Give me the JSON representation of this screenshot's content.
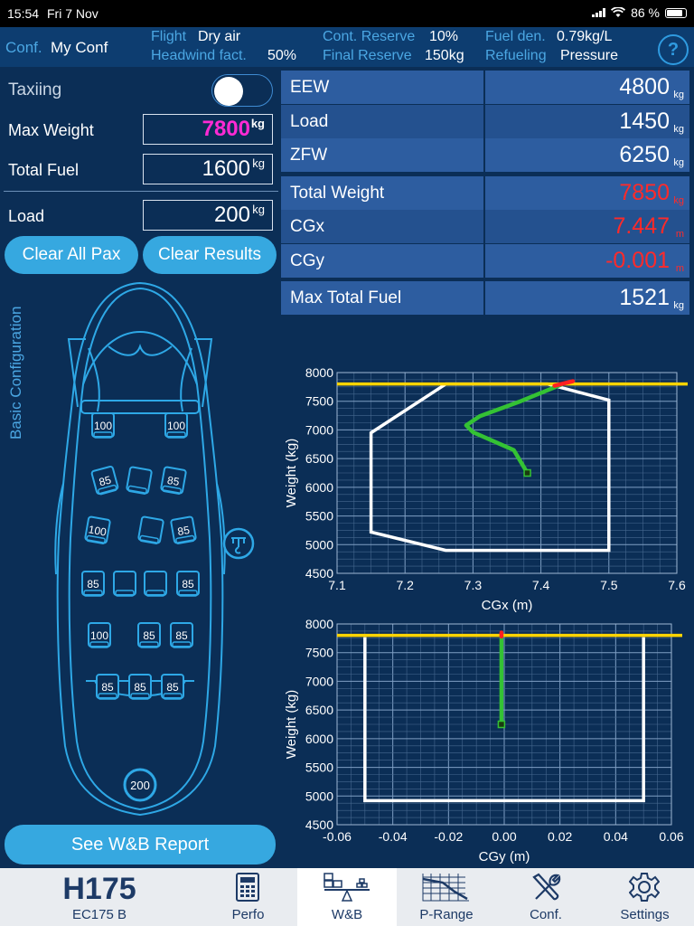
{
  "status": {
    "time": "15:54",
    "date": "Fri 7 Nov",
    "battery": "86 %"
  },
  "info": {
    "conf_label": "Conf.",
    "conf_value": "My Conf",
    "flight_label": "Flight",
    "flight_value": "Dry air",
    "headwind_label": "Headwind fact.",
    "headwind_value": "50%",
    "cont_label": "Cont. Reserve",
    "cont_value": "10%",
    "final_label": "Final Reserve",
    "final_value": "150kg",
    "fueldens_label": "Fuel den.",
    "fueldens_value": "0.79kg/L",
    "refuel_label": "Refueling",
    "refuel_value": "Pressure",
    "help": "?"
  },
  "left": {
    "taxiing": "Taxiing",
    "taxiing_on": false,
    "max_weight_label": "Max Weight",
    "max_weight": "7800",
    "total_fuel_label": "Total Fuel",
    "total_fuel": "1600",
    "load_label": "Load",
    "load": "200",
    "unit": "kg",
    "clear_pax": "Clear All Pax",
    "clear_results": "Clear Results",
    "basic_config": "Basic Configuration",
    "report": "See W&B Report"
  },
  "cabin": {
    "front_seats": [
      "100",
      "100"
    ],
    "row2": [
      "85",
      "",
      "85"
    ],
    "row3": [
      "100",
      "",
      "85"
    ],
    "row4": [
      "85",
      "",
      "",
      "85"
    ],
    "row5": [
      "100",
      "85",
      "85"
    ],
    "row6": [
      "85",
      "85",
      "85"
    ],
    "cargo": "200"
  },
  "results": [
    {
      "name": "EEW",
      "value": "4800",
      "unit": "kg",
      "red": false
    },
    {
      "name": "Load",
      "value": "1450",
      "unit": "kg",
      "red": false
    },
    {
      "name": "ZFW",
      "value": "6250",
      "unit": "kg",
      "red": false
    },
    {
      "name": "Total Weight",
      "value": "7850",
      "unit": "kg",
      "red": true
    },
    {
      "name": "CGx",
      "value": "7.447",
      "unit": "m",
      "red": true
    },
    {
      "name": "CGy",
      "value": "-0.001",
      "unit": "m",
      "red": true
    },
    {
      "name": "Max Total Fuel",
      "value": "1521",
      "unit": "kg",
      "red": false
    }
  ],
  "chart_data": [
    {
      "type": "line",
      "xlabel": "CGx (m)",
      "ylabel": "Weight (kg)",
      "xlim": [
        7.1,
        7.6
      ],
      "ylim": [
        4500,
        8000
      ],
      "xticks": [
        "7.1",
        "7.2",
        "7.3",
        "7.4",
        "7.5",
        "7.6"
      ],
      "yticks": [
        "4500",
        "5000",
        "5500",
        "6000",
        "6500",
        "7000",
        "7500",
        "8000"
      ],
      "grid": true,
      "max_weight_line": 7800,
      "envelope": [
        [
          7.26,
          7800
        ],
        [
          7.15,
          6950
        ],
        [
          7.15,
          5220
        ],
        [
          7.26,
          4900
        ],
        [
          7.5,
          4900
        ],
        [
          7.5,
          7520
        ],
        [
          7.41,
          7800
        ]
      ],
      "trajectory": [
        [
          7.38,
          6250
        ],
        [
          7.36,
          6650
        ],
        [
          7.3,
          6960
        ],
        [
          7.29,
          7080
        ],
        [
          7.31,
          7240
        ],
        [
          7.37,
          7500
        ],
        [
          7.43,
          7790
        ]
      ],
      "overweight": [
        [
          7.42,
          7770
        ],
        [
          7.447,
          7850
        ]
      ],
      "start_point": [
        7.38,
        6250
      ],
      "colors": {
        "envelope": "#ffffff",
        "trajectory": "#34c234",
        "overweight": "#ff2020",
        "limit": "#ffd400"
      }
    },
    {
      "type": "line",
      "xlabel": "CGy (m)",
      "ylabel": "Weight (kg)",
      "xlim": [
        -0.06,
        0.06
      ],
      "ylim": [
        4500,
        8000
      ],
      "xticks": [
        "-0.06",
        "-0.04",
        "-0.02",
        "0.00",
        "0.02",
        "0.04",
        "0.06"
      ],
      "yticks": [
        "4500",
        "5000",
        "5500",
        "6000",
        "6500",
        "7000",
        "7500",
        "8000"
      ],
      "grid": true,
      "max_weight_line": 7800,
      "envelope": [
        [
          -0.05,
          7770
        ],
        [
          -0.05,
          4920
        ],
        [
          0.05,
          4920
        ],
        [
          0.05,
          7770
        ]
      ],
      "trajectory": [
        [
          -0.001,
          6250
        ],
        [
          -0.001,
          7780
        ]
      ],
      "overweight": [
        [
          -0.001,
          7780
        ],
        [
          -0.001,
          7850
        ]
      ],
      "start_point": [
        -0.001,
        6250
      ],
      "colors": {
        "envelope": "#ffffff",
        "trajectory": "#34c234",
        "overweight": "#ff2020",
        "limit": "#ffd400"
      }
    }
  ],
  "tabs": [
    {
      "label": "EC175 B",
      "logo": "H175",
      "icon": "h175-logo-icon"
    },
    {
      "label": "Perfo",
      "icon": "calculator-icon"
    },
    {
      "label": "W&B",
      "icon": "balance-icon",
      "active": true
    },
    {
      "label": "P-Range",
      "icon": "p-range-chart-icon"
    },
    {
      "label": "Conf.",
      "icon": "tools-icon"
    },
    {
      "label": "Settings",
      "icon": "gear-icon"
    }
  ]
}
